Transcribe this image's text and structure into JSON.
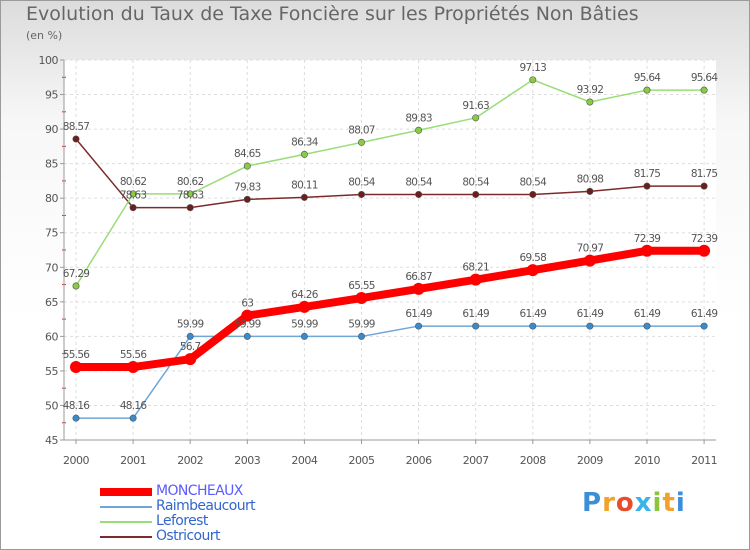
{
  "title": "Evolution du Taux de Taxe Foncière sur les Propriétés Non Bâties",
  "unit_label": "(en %)",
  "brand": {
    "letters": [
      "P",
      "r",
      "o",
      "x",
      "i",
      "t",
      "i"
    ],
    "colors": [
      "#3a8fd8",
      "#f0a22b",
      "#e84c2f",
      "#3bb2e8",
      "#8cc43f",
      "#f0a22b",
      "#3a8fd8"
    ]
  },
  "chart_data": {
    "type": "line",
    "title": "Evolution du Taux de Taxe Foncière sur les Propriétés Non Bâties",
    "ylabel": "(en %)",
    "xlabel": "",
    "ylim": [
      45,
      100
    ],
    "yticks": [
      45,
      50,
      55,
      60,
      65,
      70,
      75,
      80,
      85,
      90,
      95,
      100
    ],
    "categories": [
      "2000",
      "2001",
      "2002",
      "2003",
      "2004",
      "2005",
      "2006",
      "2007",
      "2008",
      "2009",
      "2010",
      "2011"
    ],
    "series": [
      {
        "name": "MONCHEAUX",
        "color": "#ff0000",
        "marker": "#ff0000",
        "labelColor": "#555555",
        "width": 8,
        "values": [
          55.56,
          55.56,
          56.7,
          63,
          64.26,
          65.55,
          66.87,
          68.21,
          69.58,
          70.97,
          72.39,
          72.39
        ],
        "labels": [
          "55.56",
          "55.56",
          "56.7",
          "63",
          "64.26",
          "65.55",
          "66.87",
          "68.21",
          "69.58",
          "70.97",
          "72.39",
          "72.39"
        ]
      },
      {
        "name": "Raimbeaucourt",
        "color": "#6ea6d6",
        "marker": "#3b8bcc",
        "labelColor": "#555555",
        "width": 1.5,
        "values": [
          48.16,
          48.16,
          59.99,
          59.99,
          59.99,
          59.99,
          61.49,
          61.49,
          61.49,
          61.49,
          61.49,
          61.49
        ],
        "labels": [
          "48.16",
          "48.16",
          "59.99",
          "59.99",
          "59.99",
          "59.99",
          "61.49",
          "61.49",
          "61.49",
          "61.49",
          "61.49",
          "61.49"
        ]
      },
      {
        "name": "Leforest",
        "color": "#99dd77",
        "marker": "#88cc44",
        "labelColor": "#555555",
        "width": 1.5,
        "values": [
          67.29,
          80.62,
          80.62,
          84.65,
          86.34,
          88.07,
          89.83,
          91.63,
          97.13,
          93.92,
          95.64,
          95.64
        ],
        "labels": [
          "67.29",
          "80.62",
          "80.62",
          "84.65",
          "86.34",
          "88.07",
          "89.83",
          "91.63",
          "97.13",
          "93.92",
          "95.64",
          "95.64"
        ]
      },
      {
        "name": "Ostricourt",
        "color": "#7b2b2b",
        "marker": "#6b1e1e",
        "labelColor": "#555555",
        "width": 1.5,
        "values": [
          88.57,
          78.63,
          78.63,
          79.83,
          80.11,
          80.54,
          80.54,
          80.54,
          80.54,
          80.98,
          81.75,
          81.75
        ],
        "labels": [
          "88.57",
          "78.63",
          "78.63",
          "79.83",
          "80.11",
          "80.54",
          "80.54",
          "80.54",
          "80.54",
          "80.98",
          "81.75",
          "81.75"
        ]
      }
    ],
    "legend": [
      {
        "name": "MONCHEAUX",
        "color": "#ff0000",
        "textColor": "#5b5bff",
        "width": 8
      },
      {
        "name": "Raimbeaucourt",
        "color": "#6ea6d6",
        "textColor": "#3366cc",
        "width": 2
      },
      {
        "name": "Leforest",
        "color": "#99dd77",
        "textColor": "#3366cc",
        "width": 2
      },
      {
        "name": "Ostricourt",
        "color": "#7b2b2b",
        "textColor": "#3366cc",
        "width": 2
      }
    ]
  }
}
